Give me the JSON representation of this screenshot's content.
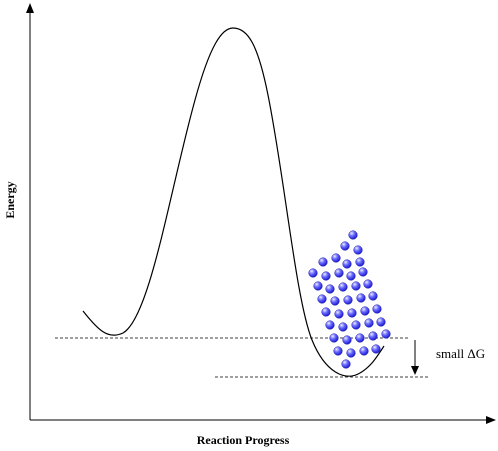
{
  "axes": {
    "x_label": "Reaction Progress",
    "y_label": "Energy"
  },
  "annotation": {
    "delta_g_label": "small ΔG"
  },
  "colors": {
    "curve": "#000000",
    "molecule_fill": "#3b3bf0",
    "molecule_highlight": "#e6e6ff",
    "guide_line": "#000000"
  }
}
